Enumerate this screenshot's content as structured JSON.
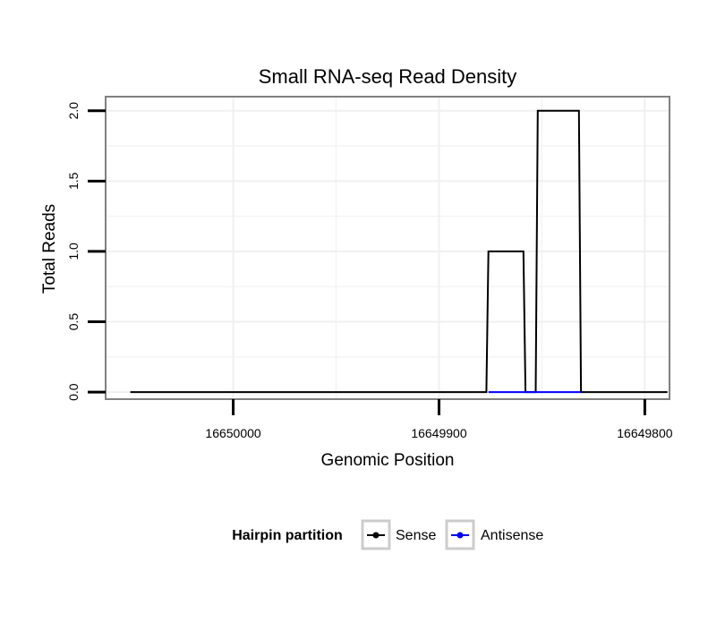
{
  "chart_data": {
    "type": "line",
    "title": "Small RNA-seq Read Density",
    "xlabel": "Genomic Position",
    "ylabel": "Total Reads",
    "x_reversed": true,
    "xlim": [
      16650062,
      16649788
    ],
    "ylim": [
      -0.05,
      2.1
    ],
    "x_ticks": [
      16650000,
      16649900,
      16649800
    ],
    "x_tick_labels": [
      "16650000",
      "16649900",
      "16649800"
    ],
    "y_ticks": [
      0,
      0.5,
      1,
      1.5,
      2
    ],
    "y_tick_labels": [
      "0.0",
      "0.5",
      "1.0",
      "1.5",
      "2.0"
    ],
    "grid": true,
    "legend": {
      "title": "Hairpin partition",
      "position": "bottom",
      "entries": [
        {
          "name": "Sense",
          "color": "#000000"
        },
        {
          "name": "Antisense",
          "color": "#0000ff"
        }
      ]
    },
    "series": [
      {
        "name": "Sense",
        "color": "#000000",
        "x": [
          16650050,
          16649877,
          16649876,
          16649859,
          16649858,
          16649853,
          16649852,
          16649832,
          16649831,
          16649789
        ],
        "y": [
          0,
          0,
          1,
          1,
          0,
          0,
          2,
          2,
          0,
          0
        ]
      },
      {
        "name": "Antisense",
        "color": "#0000ff",
        "x": [
          16649876,
          16649858,
          16649852,
          16649831
        ],
        "y": [
          0,
          0,
          0,
          0
        ]
      }
    ]
  }
}
